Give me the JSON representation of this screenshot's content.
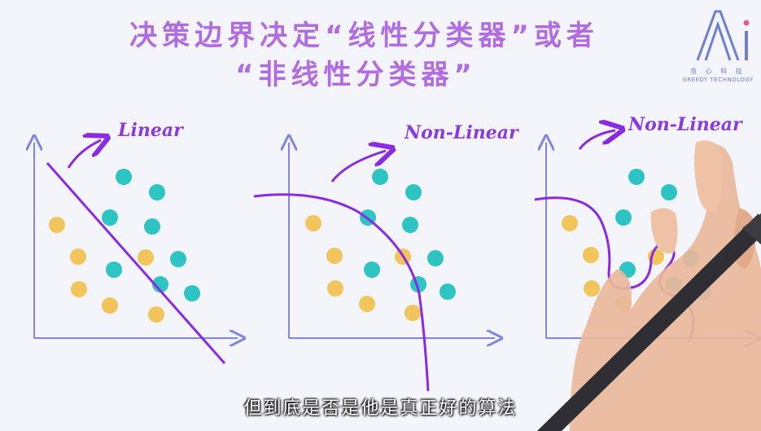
{
  "title_line1": "决策边界决定“线性分类器”或者",
  "title_line2": "“非线性分类器”",
  "logo": {
    "cn": "贪 心 科 技",
    "en": "GREEDY TECHNOLOGY",
    "mark": "Ai"
  },
  "subtitle": "但到底是否是他是真正好的算法",
  "panels": [
    {
      "label": "Linear"
    },
    {
      "label": "Non-Linear"
    },
    {
      "label": "Non-Linear"
    }
  ],
  "colors": {
    "title": "#b06ce0",
    "axis": "#7f85e0",
    "boundary": "#8a2be2",
    "teal": "#2ec4c4",
    "yellow": "#f2c45c"
  }
}
